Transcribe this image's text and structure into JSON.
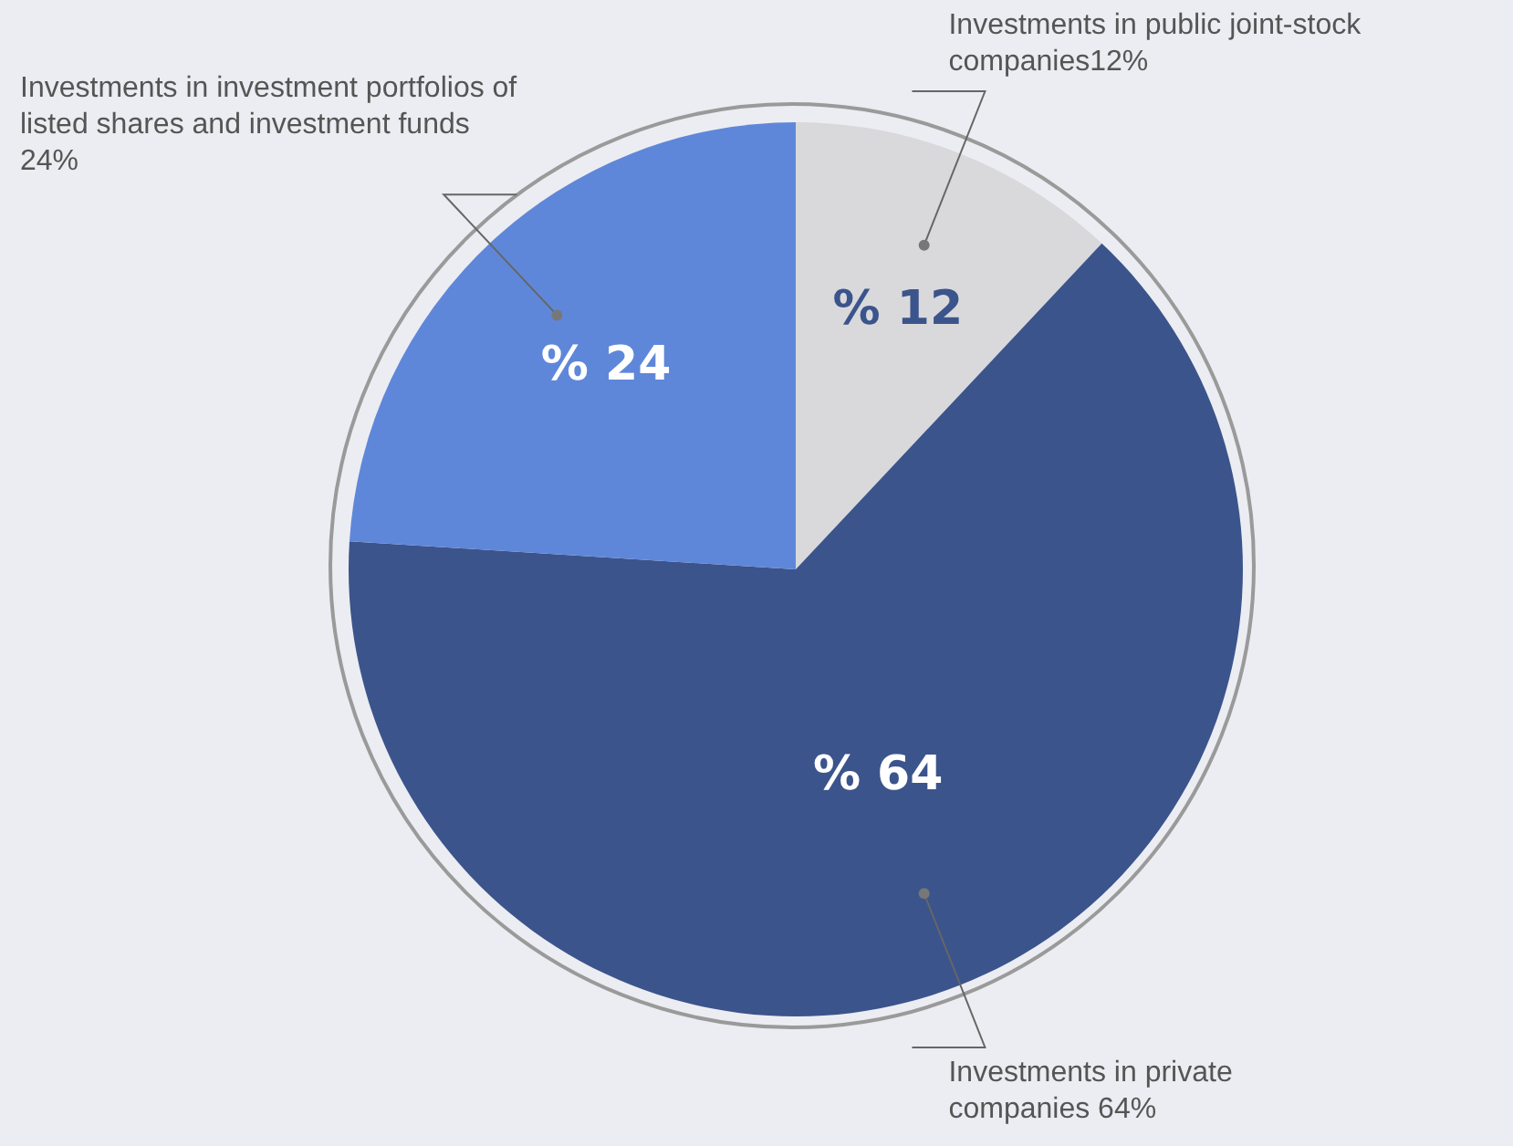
{
  "chart_data": {
    "type": "pie",
    "categories": [
      "Investments in public joint-stock companies12%",
      "Investments in private companies 64%",
      "Investments in investment portfolios of listed shares and investment funds 24%"
    ],
    "values": [
      12,
      64,
      24
    ],
    "colors": [
      "#d9d9db",
      "#3b548c",
      "#5f87d9"
    ],
    "value_labels": [
      "% 12",
      "% 64",
      "% 24"
    ],
    "legend": false
  }
}
